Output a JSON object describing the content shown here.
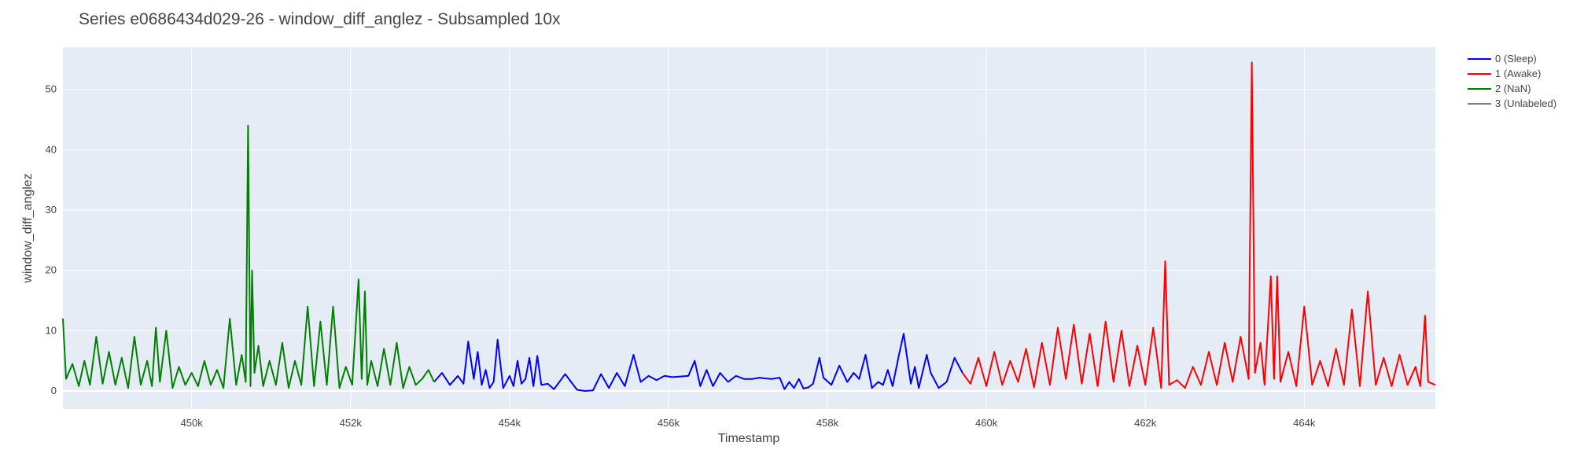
{
  "chart_data": {
    "type": "line",
    "title": "Series e0686434d029-26 - window_diff_anglez - Subsampled 10x",
    "xlabel": "Timestamp",
    "ylabel": "window_diff_anglez",
    "xlim": [
      448380,
      465650
    ],
    "ylim": [
      -3,
      57
    ],
    "x_ticks": [
      450000,
      452000,
      454000,
      456000,
      458000,
      460000,
      462000,
      464000
    ],
    "x_tick_labels": [
      "450k",
      "452k",
      "454k",
      "456k",
      "458k",
      "460k",
      "462k",
      "464k"
    ],
    "y_ticks": [
      0,
      10,
      20,
      30,
      40,
      50
    ],
    "y_tick_labels": [
      "0",
      "10",
      "20",
      "30",
      "40",
      "50"
    ],
    "grid": true,
    "legend_position": "right",
    "plot_background": "#e5ecf6",
    "series": [
      {
        "name": "0 (Sleep)",
        "color": "#0000ff",
        "x": [
          453050,
          453150,
          453250,
          453350,
          453420,
          453480,
          453550,
          453600,
          453650,
          453700,
          453750,
          453800,
          453850,
          453920,
          454000,
          454050,
          454100,
          454150,
          454200,
          454250,
          454300,
          454350,
          454400,
          454480,
          454560,
          454700,
          454850,
          454950,
          455050,
          455150,
          455250,
          455350,
          455450,
          455560,
          455650,
          455750,
          455850,
          455950,
          456050,
          456150,
          456250,
          456330,
          456400,
          456480,
          456560,
          456650,
          456750,
          456850,
          456950,
          457050,
          457150,
          457200,
          457300,
          457400,
          457460,
          457520,
          457580,
          457640,
          457700,
          457760,
          457820,
          457900,
          457950,
          458050,
          458150,
          458250,
          458330,
          458400,
          458480,
          458560,
          458640,
          458700,
          458760,
          458820,
          458900,
          458960,
          459050,
          459100,
          459150,
          459250,
          459300,
          459400,
          459500,
          459600,
          459700
        ],
        "values": [
          1.5,
          3.0,
          1.0,
          2.5,
          1.2,
          8.2,
          2.0,
          6.5,
          1.0,
          3.5,
          0.5,
          1.5,
          8.5,
          0.5,
          2.5,
          0.8,
          5.0,
          1.2,
          2.0,
          5.5,
          0.8,
          5.8,
          1.0,
          1.2,
          0.3,
          2.8,
          0.2,
          0.0,
          0.1,
          2.8,
          0.5,
          3.0,
          0.8,
          6.0,
          1.5,
          2.5,
          1.8,
          2.5,
          2.3,
          2.4,
          2.5,
          5.0,
          0.8,
          3.5,
          0.8,
          3.0,
          1.5,
          2.5,
          2.0,
          2.0,
          2.2,
          2.1,
          2.0,
          2.2,
          0.3,
          1.5,
          0.5,
          2.0,
          0.4,
          0.6,
          1.2,
          5.5,
          2.2,
          1.0,
          4.2,
          1.5,
          3.0,
          2.0,
          6.0,
          0.5,
          1.5,
          1.0,
          3.5,
          0.8,
          6.0,
          9.5,
          1.2,
          4.0,
          0.5,
          6.0,
          3.0,
          0.5,
          1.5,
          5.5,
          3.0
        ]
      },
      {
        "name": "1 (Awake)",
        "color": "#ff0000",
        "x": [
          459700,
          459800,
          459900,
          460000,
          460100,
          460200,
          460300,
          460400,
          460500,
          460600,
          460700,
          460800,
          460900,
          461000,
          461100,
          461200,
          461300,
          461400,
          461500,
          461600,
          461700,
          461800,
          461900,
          462000,
          462100,
          462200,
          462250,
          462300,
          462400,
          462500,
          462600,
          462700,
          462800,
          462900,
          463000,
          463100,
          463200,
          463300,
          463340,
          463380,
          463450,
          463500,
          463580,
          463620,
          463660,
          463700,
          463800,
          463900,
          464000,
          464100,
          464200,
          464300,
          464400,
          464500,
          464600,
          464700,
          464800,
          464900,
          465000,
          465100,
          465200,
          465300,
          465400,
          465460,
          465520,
          465560,
          465650
        ],
        "values": [
          3.0,
          1.2,
          5.5,
          0.8,
          6.5,
          1.0,
          5.0,
          1.5,
          7.0,
          0.6,
          8.0,
          1.0,
          10.5,
          2.0,
          11.0,
          1.2,
          9.5,
          0.8,
          11.5,
          1.5,
          10.0,
          0.8,
          7.5,
          1.0,
          10.5,
          0.5,
          21.5,
          1.0,
          1.8,
          0.5,
          4.0,
          1.0,
          6.5,
          1.0,
          8.0,
          1.5,
          9.0,
          2.0,
          54.5,
          3.0,
          8.0,
          1.0,
          19.0,
          2.0,
          19.0,
          1.5,
          6.5,
          0.8,
          14.0,
          1.0,
          5.0,
          0.8,
          7.0,
          1.0,
          13.5,
          0.8,
          16.5,
          1.0,
          5.5,
          0.8,
          6.0,
          1.0,
          4.0,
          0.8,
          12.5,
          1.5,
          1.0
        ]
      },
      {
        "name": "2 (NaN)",
        "color": "#008000",
        "x": [
          448380,
          448420,
          448500,
          448580,
          448650,
          448720,
          448800,
          448880,
          448960,
          449040,
          449120,
          449200,
          449280,
          449360,
          449440,
          449500,
          449550,
          449600,
          449680,
          449760,
          449840,
          449920,
          450000,
          450080,
          450160,
          450240,
          450320,
          450400,
          450480,
          450560,
          450630,
          450680,
          450710,
          450740,
          450760,
          450790,
          450840,
          450900,
          450980,
          451060,
          451140,
          451220,
          451300,
          451380,
          451460,
          451540,
          451620,
          451700,
          451780,
          451860,
          451940,
          452020,
          452100,
          452140,
          452180,
          452210,
          452260,
          452340,
          452420,
          452500,
          452580,
          452660,
          452740,
          452820,
          452900,
          452980,
          453050
        ],
        "values": [
          12.0,
          2.0,
          4.5,
          0.8,
          5.0,
          1.0,
          9.0,
          1.2,
          6.5,
          1.0,
          5.5,
          0.5,
          9.0,
          1.0,
          5.0,
          0.8,
          10.5,
          1.5,
          10.0,
          0.5,
          4.0,
          1.0,
          3.0,
          0.8,
          5.0,
          1.0,
          3.5,
          0.5,
          12.0,
          1.0,
          6.0,
          1.5,
          44.0,
          0.8,
          20.0,
          3.0,
          7.5,
          0.8,
          5.0,
          1.0,
          8.0,
          0.5,
          5.0,
          1.0,
          14.0,
          0.8,
          11.5,
          1.0,
          14.0,
          0.5,
          4.0,
          1.0,
          18.5,
          2.0,
          16.5,
          1.0,
          5.0,
          0.8,
          7.0,
          1.0,
          8.0,
          0.5,
          4.0,
          1.0,
          2.0,
          3.5,
          1.5
        ]
      },
      {
        "name": "3 (Unlabeled)",
        "color": "#808080",
        "x": [],
        "values": []
      }
    ]
  }
}
